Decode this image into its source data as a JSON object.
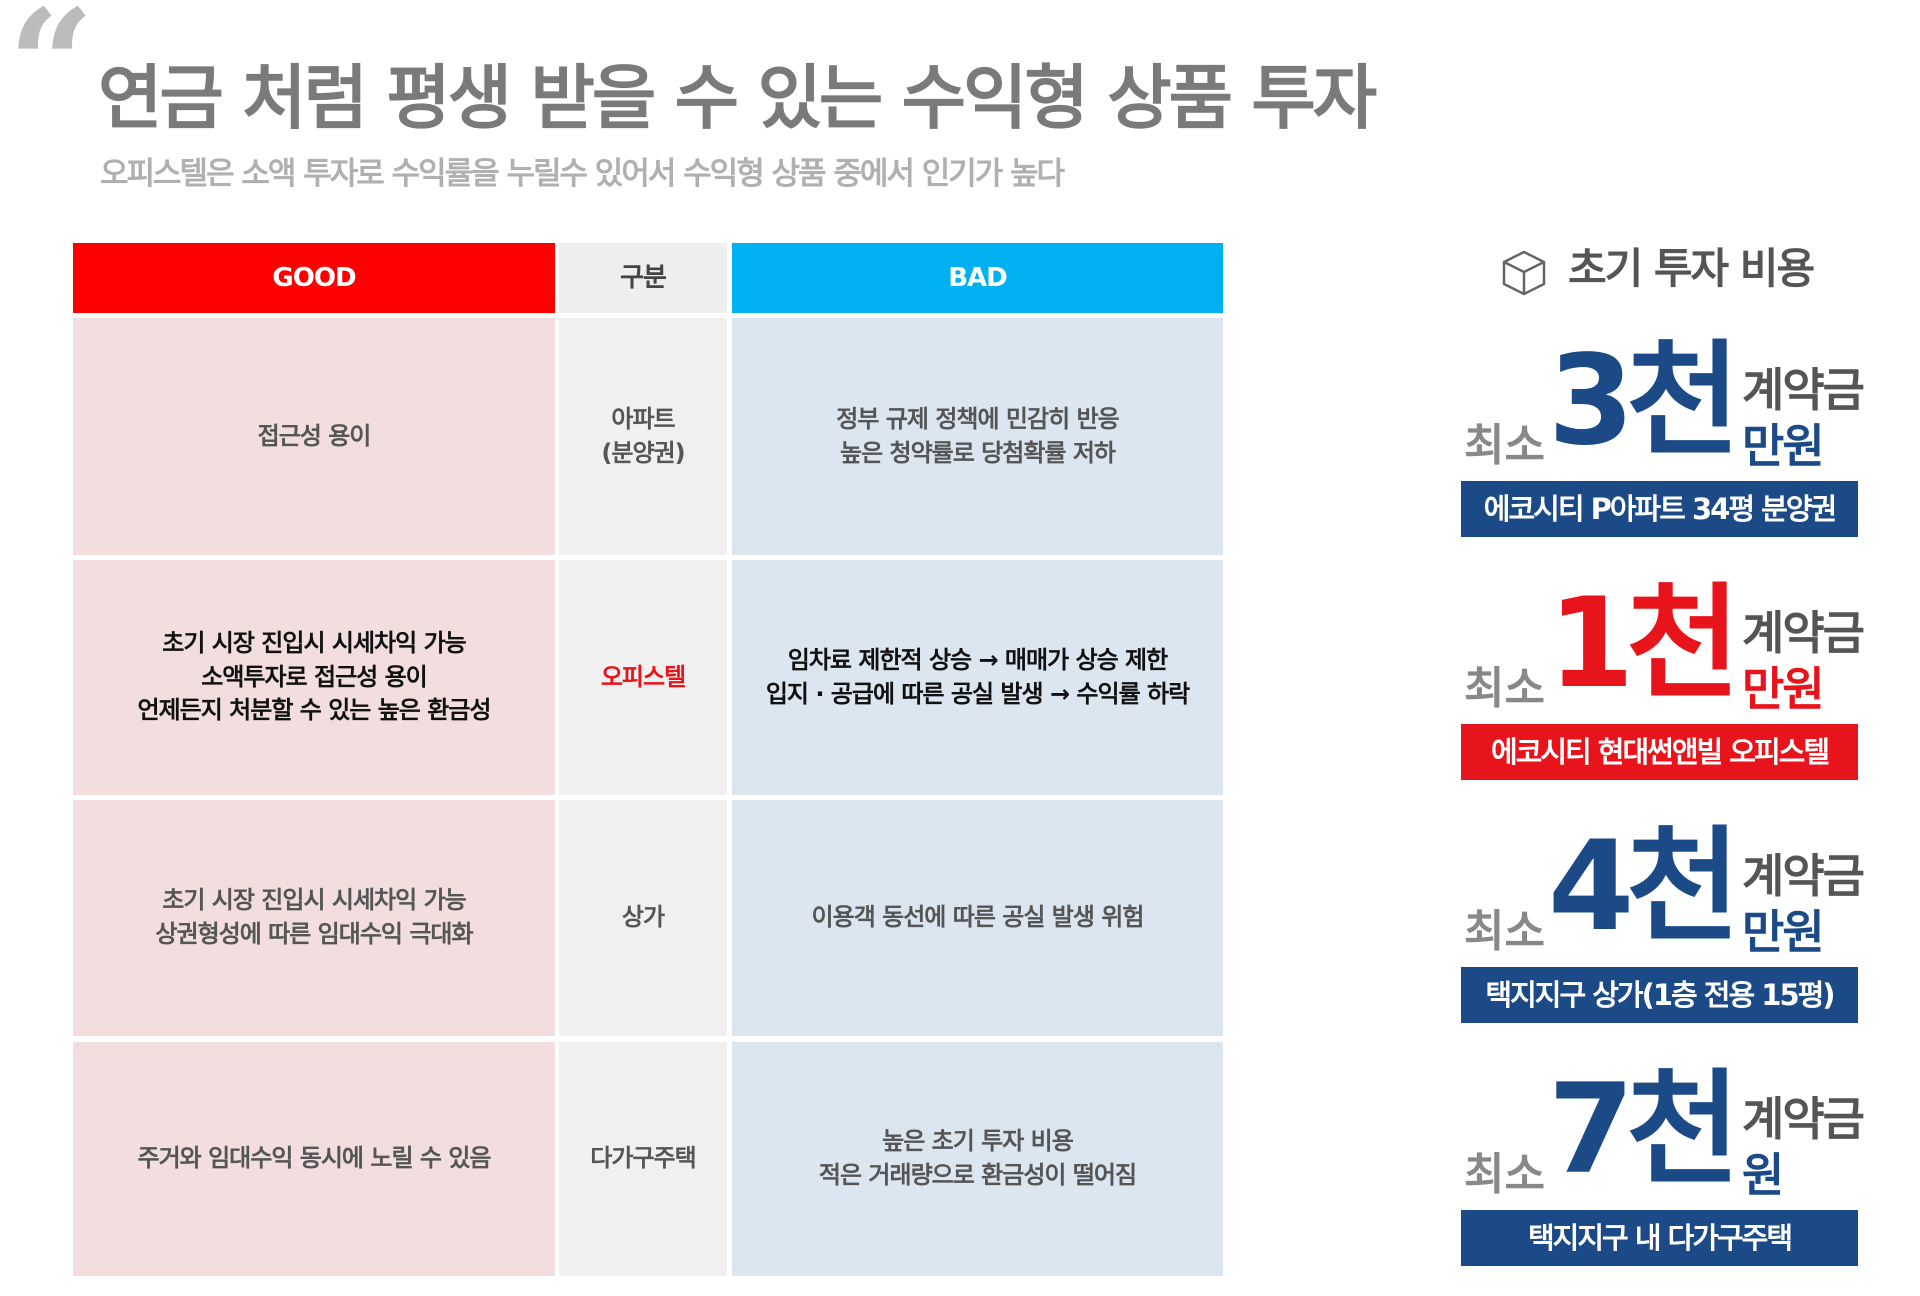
{
  "header": {
    "title": "연금 처럼 평생 받을 수 있는 수익형 상품 투자",
    "subtitle": "오피스텔은 소액 투자로 수익률을 누릴수 있어서 수익형 상품 중에서 인기가 높다"
  },
  "table": {
    "headers": [
      "GOOD",
      "구분",
      "BAD"
    ],
    "rows": [
      [
        [
          "접근성 용이"
        ],
        [
          "아파트",
          "(분양권)"
        ],
        [
          "정부 규제 정책에 민감히 반응",
          "높은 청약률로 당첨확률 저하"
        ]
      ],
      [
        [
          "초기 시장 진입시 시세차익 가능",
          "소액투자로 접근성 용이",
          "언제든지 처분할 수 있는 높은 환금성"
        ],
        [
          "오피스텔"
        ],
        [
          "임차료 제한적 상승 → 매매가 상승 제한",
          "입지 · 공급에 따른 공실 발생 → 수익률 하락"
        ]
      ],
      [
        [
          "초기 시장 진입시 시세차익 가능",
          "상권형성에 따른 임대수익 극대화"
        ],
        [
          "상가"
        ],
        [
          "이용객 동선에 따른 공실 발생 위험"
        ]
      ],
      [
        [
          "주거와 임대수익 동시에 노릴 수 있음"
        ],
        [
          "다가구주택"
        ],
        [
          "높은 초기 투자 비용",
          "적은 거래량으로 환금성이 떨어짐"
        ]
      ]
    ]
  },
  "side": {
    "title": "초기 투자 비용",
    "items": [
      {
        "prefix": "최소",
        "amount": "3천",
        "unit_top": "계약금",
        "unit_bottom": "만원",
        "label": "에코시티 P아파트 34평 분양권",
        "color": "#1b4a86"
      },
      {
        "prefix": "최소",
        "amount": "1천",
        "unit_top": "계약금",
        "unit_bottom": "만원",
        "label": "에코시티 현대썬앤빌 오피스텔",
        "color": "#e8141b"
      },
      {
        "prefix": "최소",
        "amount": "4천",
        "unit_top": "계약금",
        "unit_bottom": "만원",
        "label": "택지지구 상가(1층 전용 15평)",
        "color": "#1b4a86"
      },
      {
        "prefix": "최소",
        "amount": "7천",
        "unit_top": "계약금",
        "unit_bottom": "원",
        "label": "택지지구 내 다가구주택",
        "color": "#1b4a86"
      }
    ]
  }
}
